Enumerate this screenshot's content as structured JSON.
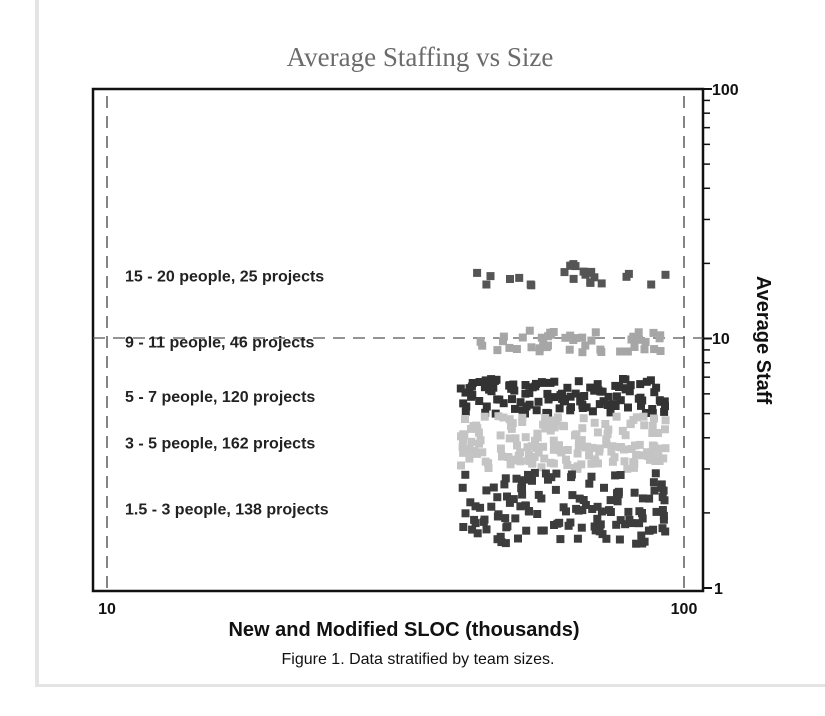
{
  "chart_data": {
    "type": "scatter",
    "title": "Average Staffing vs Size",
    "xlabel": "New and Modified SLOC  (thousands)",
    "ylabel": "Average Staff",
    "caption": "Figure 1. Data stratified by team sizes.",
    "x_scale": "log",
    "y_scale": "log",
    "xlim": [
      10,
      100
    ],
    "ylim": [
      1,
      100
    ],
    "x_ticks": [
      "10",
      "100"
    ],
    "y_ticks": [
      "1",
      "10",
      "100"
    ],
    "grid": false,
    "reference_line_y": 10,
    "bands": [
      {
        "label": "15 - 20  people, 25 projects",
        "n": 25,
        "y_range": [
          16,
          20
        ],
        "color": "#555555"
      },
      {
        "label": "9 - 11  people, 46 projects",
        "n": 46,
        "y_range": [
          8.8,
          10.8
        ],
        "color": "#a6a6a6"
      },
      {
        "label": "5 - 7  people, 120 projects",
        "n": 120,
        "y_range": [
          5.0,
          6.9
        ],
        "color": "#333333"
      },
      {
        "label": "3 - 5  people, 162 projects",
        "n": 162,
        "y_range": [
          3.0,
          4.9
        ],
        "color": "#c4c4c4"
      },
      {
        "label": "1.5 - 3  people, 138 projects",
        "n": 138,
        "y_range": [
          1.5,
          2.9
        ],
        "color": "#3d3d3d"
      }
    ],
    "points_x_range": [
      41,
      93
    ]
  }
}
